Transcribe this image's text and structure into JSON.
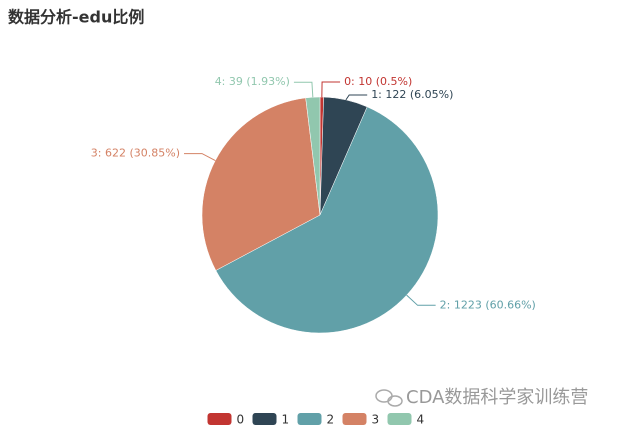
{
  "chart_data": {
    "type": "pie",
    "title": "数据分析-edu比例",
    "categories": [
      "0",
      "1",
      "2",
      "3",
      "4"
    ],
    "values": [
      10,
      122,
      1223,
      622,
      39
    ],
    "value_labels": [
      "0: 10 (0.5%)",
      "1: 122 (6.05%)",
      "2: 1223 (60.66%)",
      "3: 622 (30.85%)",
      "4: 39 (1.93%)"
    ],
    "colors": [
      "#c23531",
      "#2f4554",
      "#61a0a8",
      "#d48265",
      "#91c7ae"
    ],
    "legend": "bottom",
    "watermark": "CDA数据科学家训练营"
  }
}
